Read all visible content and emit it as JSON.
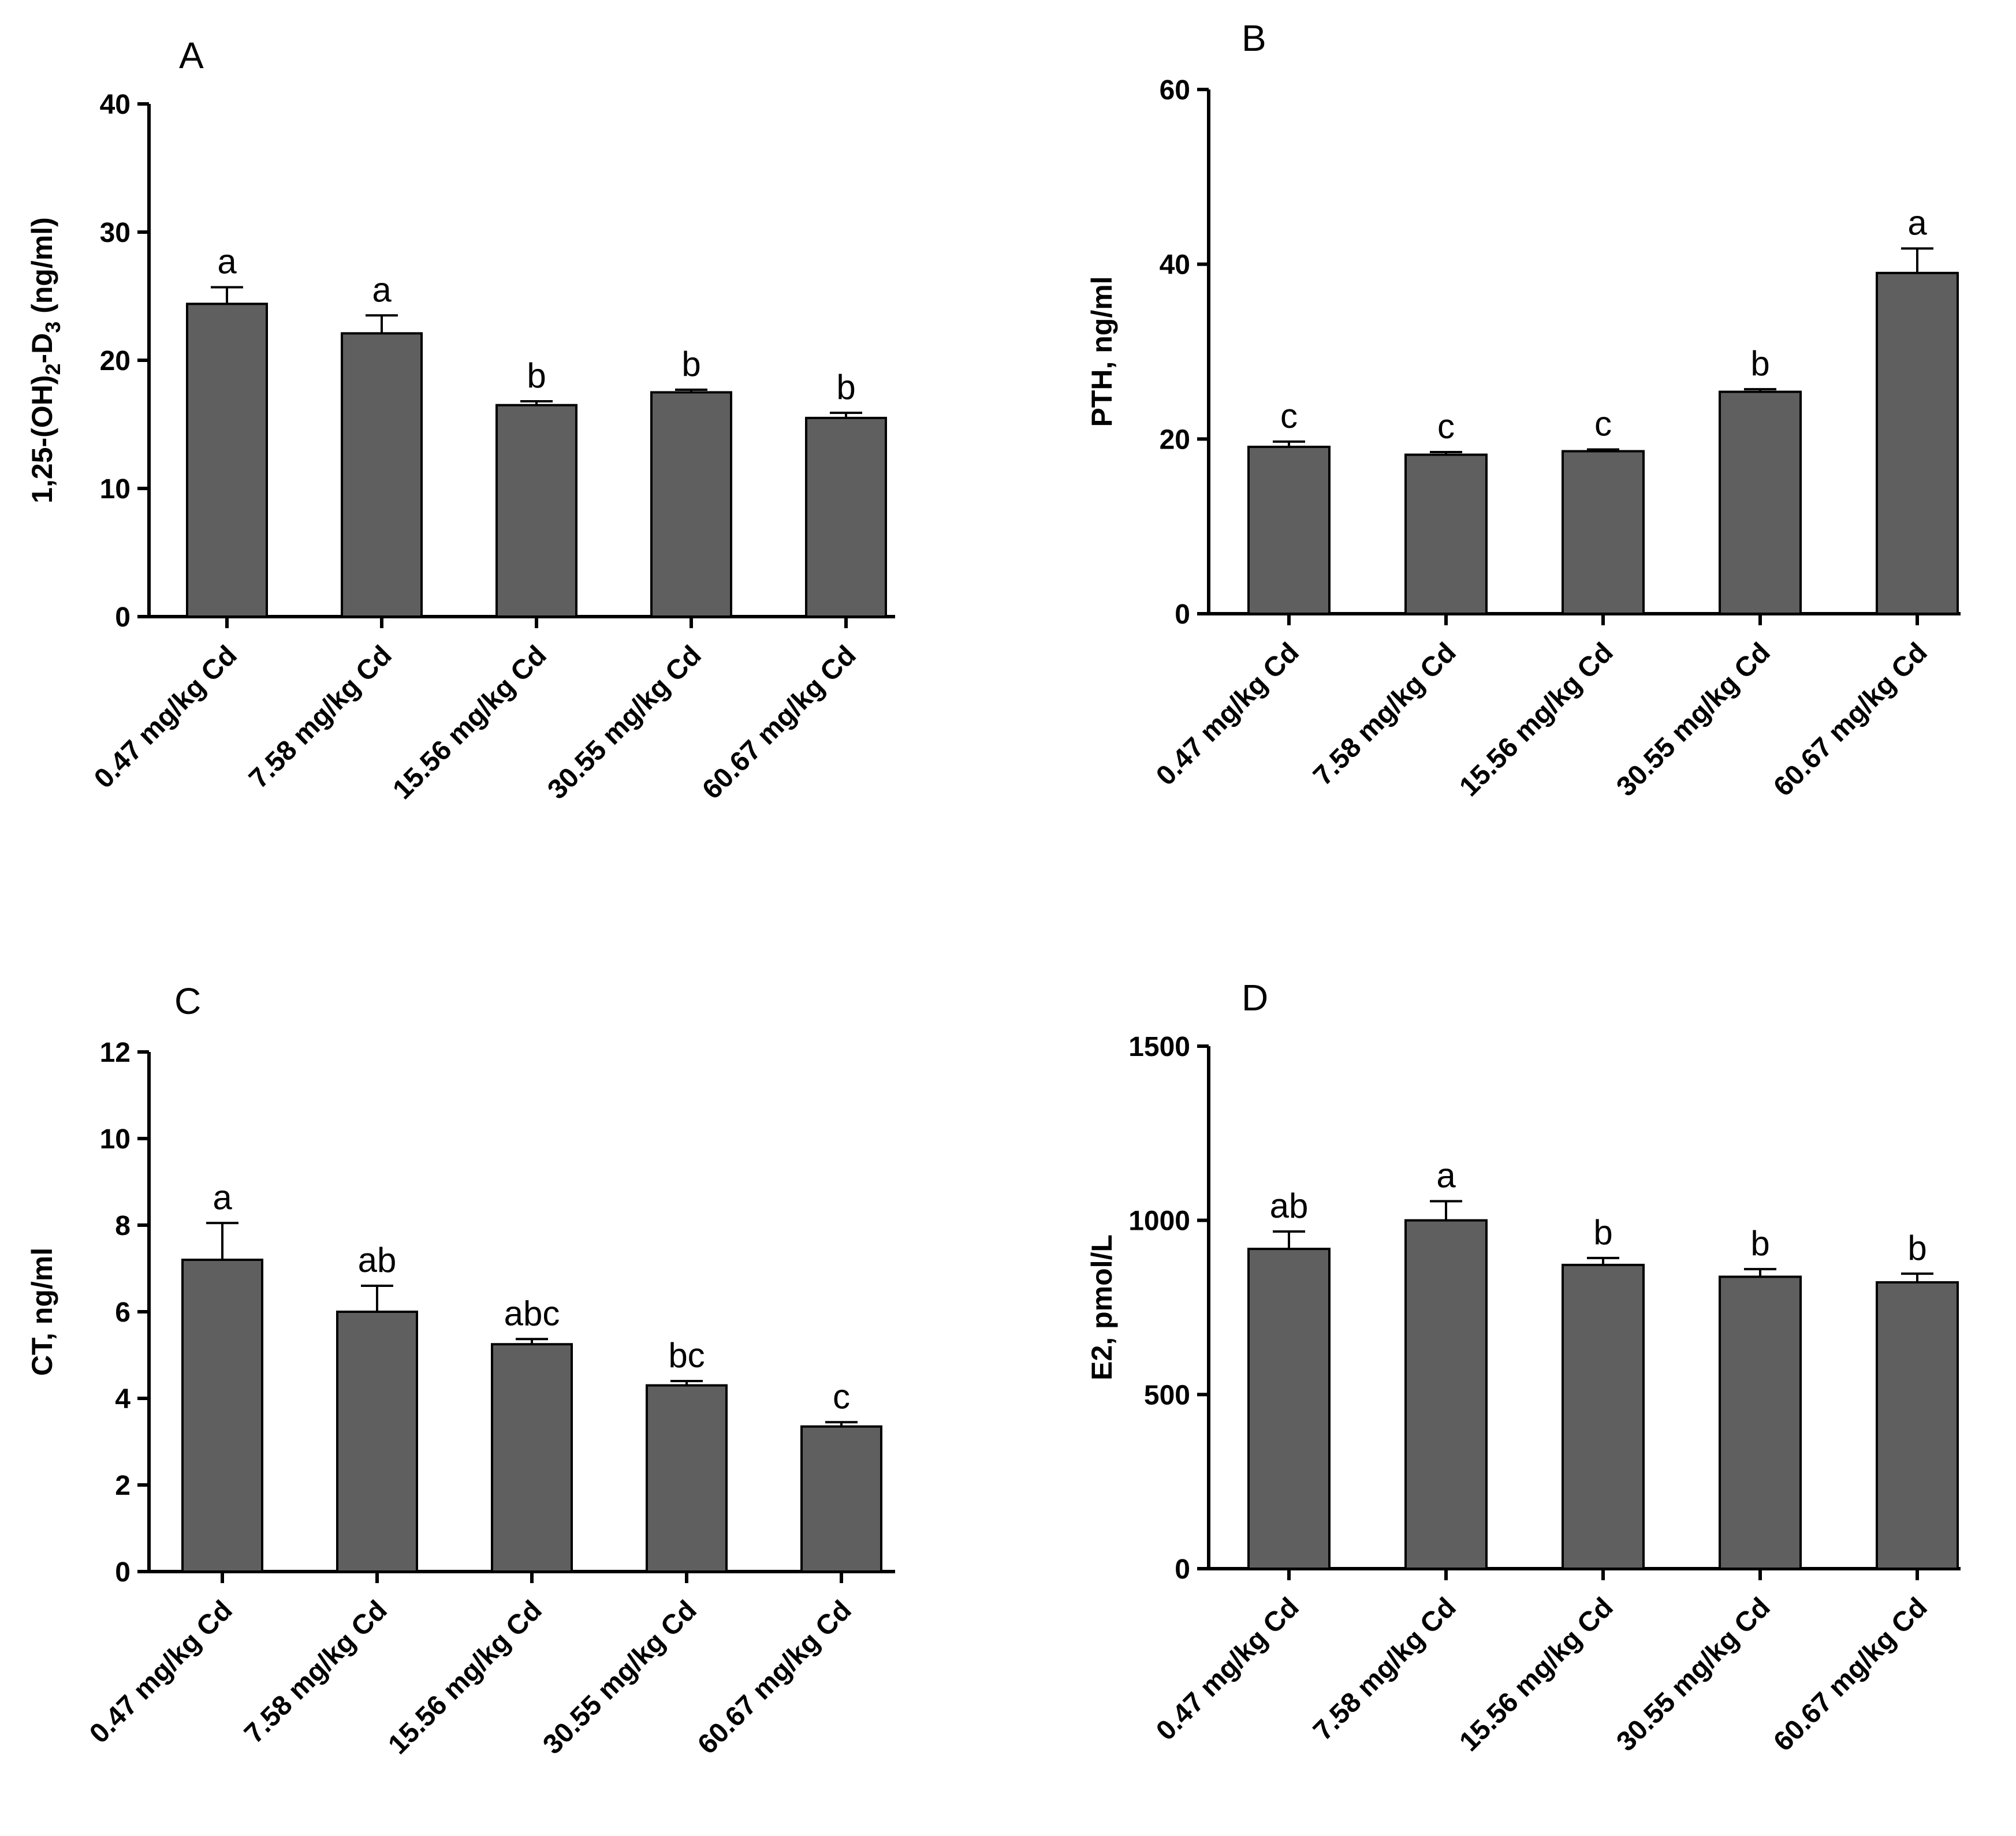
{
  "chart_data": [
    {
      "panel": "A",
      "type": "bar",
      "ylabel_parts": [
        "1,25-(OH)",
        "2",
        "-D",
        "3",
        " (ng/ml)"
      ],
      "ylim": [
        0,
        40
      ],
      "yticks": [
        0,
        10,
        20,
        30,
        40
      ],
      "ytick_labels": [
        "0",
        "10",
        "20",
        "30",
        "40"
      ],
      "categories": [
        "0.47 mg/kg Cd",
        "7.58 mg/kg Cd",
        "15.56 mg/kg Cd",
        "30.55 mg/kg Cd",
        "60.67 mg/kg Cd"
      ],
      "values": [
        24.4,
        22.1,
        16.5,
        17.5,
        15.5
      ],
      "errors": [
        1.3,
        1.4,
        0.3,
        0.2,
        0.4
      ],
      "significance": [
        "a",
        "a",
        "b",
        "b",
        "b"
      ],
      "color": "#5f5f5f"
    },
    {
      "panel": "B",
      "type": "bar",
      "ylabel_parts": [
        "PTH, ng/ml"
      ],
      "ylim": [
        0,
        60
      ],
      "yticks": [
        0,
        20,
        40,
        60
      ],
      "ytick_labels": [
        "0",
        "20",
        "40",
        "60"
      ],
      "categories": [
        "0.47 mg/kg Cd",
        "7.58 mg/kg Cd",
        "15.56 mg/kg Cd",
        "30.55 mg/kg Cd",
        "60.67 mg/kg Cd"
      ],
      "values": [
        19.1,
        18.2,
        18.6,
        25.4,
        39.0
      ],
      "errors": [
        0.6,
        0.3,
        0.2,
        0.3,
        2.8
      ],
      "significance": [
        "c",
        "c",
        "c",
        "b",
        "a"
      ],
      "color": "#5f5f5f"
    },
    {
      "panel": "C",
      "type": "bar",
      "ylabel_parts": [
        "CT, ng/ml"
      ],
      "ylim": [
        0,
        12
      ],
      "yticks": [
        0,
        2,
        4,
        6,
        8,
        10,
        12
      ],
      "ytick_labels": [
        "0",
        "2",
        "4",
        "6",
        "8",
        "10",
        "12"
      ],
      "categories": [
        "0.47 mg/kg Cd",
        "7.58 mg/kg Cd",
        "15.56 mg/kg Cd",
        "30.55 mg/kg Cd",
        "60.67 mg/kg Cd"
      ],
      "values": [
        7.2,
        6.0,
        5.25,
        4.3,
        3.35
      ],
      "errors": [
        0.85,
        0.6,
        0.12,
        0.1,
        0.1
      ],
      "significance": [
        "a",
        "ab",
        "abc",
        "bc",
        "c"
      ],
      "color": "#5f5f5f"
    },
    {
      "panel": "D",
      "type": "bar",
      "ylabel_parts": [
        "E2, pmol/L"
      ],
      "ylim": [
        0,
        1500
      ],
      "yticks": [
        0,
        500,
        1000,
        1500
      ],
      "ytick_labels": [
        "0",
        "500",
        "1000",
        "1500"
      ],
      "categories": [
        "0.47 mg/kg Cd",
        "7.58 mg/kg Cd",
        "15.56 mg/kg Cd",
        "30.55 mg/kg Cd",
        "60.67 mg/kg Cd"
      ],
      "values": [
        918,
        1000,
        872,
        838,
        822
      ],
      "errors": [
        50,
        55,
        20,
        22,
        25
      ],
      "significance": [
        "ab",
        "a",
        "b",
        "b",
        "b"
      ],
      "color": "#5f5f5f"
    }
  ]
}
